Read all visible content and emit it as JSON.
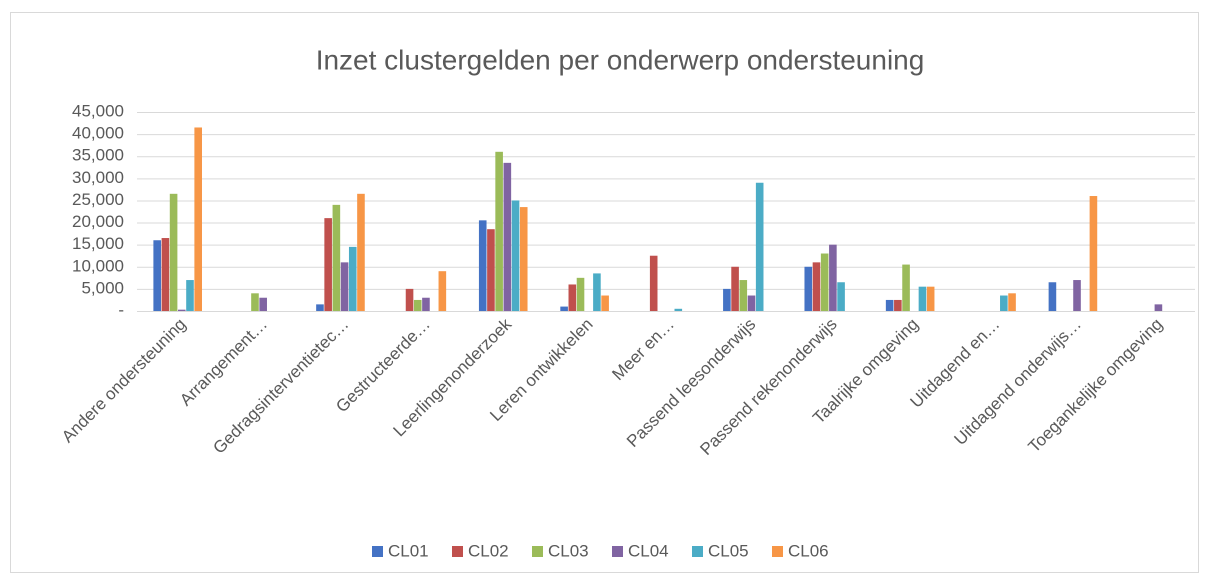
{
  "chart_data": {
    "type": "bar",
    "title": "Inzet clustergelden per onderwerp ondersteuning",
    "categories": [
      "Andere ondersteuning",
      "Arrangement…",
      "Gedragsinterventietec…",
      "Gestructeerde…",
      "Leerlingenonderzoek",
      "Leren ontwikkelen",
      "Meer en…",
      "Passend leesonderwijs",
      "Passend rekenonderwijs",
      "Taalrijke omgeving",
      "Uitdagend en…",
      "Uitdagend onderwijs…",
      "Toegankelijke omgeving"
    ],
    "series": [
      {
        "name": "CL01",
        "color": "#4472c4",
        "values": [
          16000,
          0,
          1500,
          0,
          20500,
          1000,
          0,
          5000,
          10000,
          2500,
          0,
          6500,
          0
        ]
      },
      {
        "name": "CL02",
        "color": "#c0504d",
        "values": [
          16500,
          0,
          21000,
          5000,
          18500,
          6000,
          12500,
          10000,
          11000,
          2500,
          0,
          0,
          0
        ]
      },
      {
        "name": "CL03",
        "color": "#9bbb59",
        "values": [
          26500,
          4000,
          24000,
          2500,
          36000,
          7500,
          0,
          7000,
          13000,
          10500,
          0,
          0,
          0
        ]
      },
      {
        "name": "CL04",
        "color": "#8064a2",
        "values": [
          300,
          3000,
          11000,
          3000,
          33500,
          0,
          0,
          3500,
          15000,
          0,
          0,
          7000,
          1500
        ]
      },
      {
        "name": "CL05",
        "color": "#4bacc6",
        "values": [
          7000,
          0,
          14500,
          0,
          25000,
          8500,
          500,
          29000,
          6500,
          5500,
          3500,
          0,
          0
        ]
      },
      {
        "name": "CL06",
        "color": "#f79646",
        "values": [
          41500,
          0,
          26500,
          9000,
          23500,
          3500,
          0,
          0,
          0,
          5500,
          4000,
          26000,
          0
        ]
      }
    ],
    "ylim": [
      0,
      45000
    ],
    "yticks": [
      {
        "value": 0,
        "label": "-"
      },
      {
        "value": 5000,
        "label": "5,000"
      },
      {
        "value": 10000,
        "label": "10,000"
      },
      {
        "value": 15000,
        "label": "15,000"
      },
      {
        "value": 20000,
        "label": "20,000"
      },
      {
        "value": 25000,
        "label": "25,000"
      },
      {
        "value": 30000,
        "label": "30,000"
      },
      {
        "value": 35000,
        "label": "35,000"
      },
      {
        "value": 40000,
        "label": "40,000"
      },
      {
        "value": 45000,
        "label": "45,000"
      }
    ],
    "grid": true,
    "legend": "bottom"
  }
}
